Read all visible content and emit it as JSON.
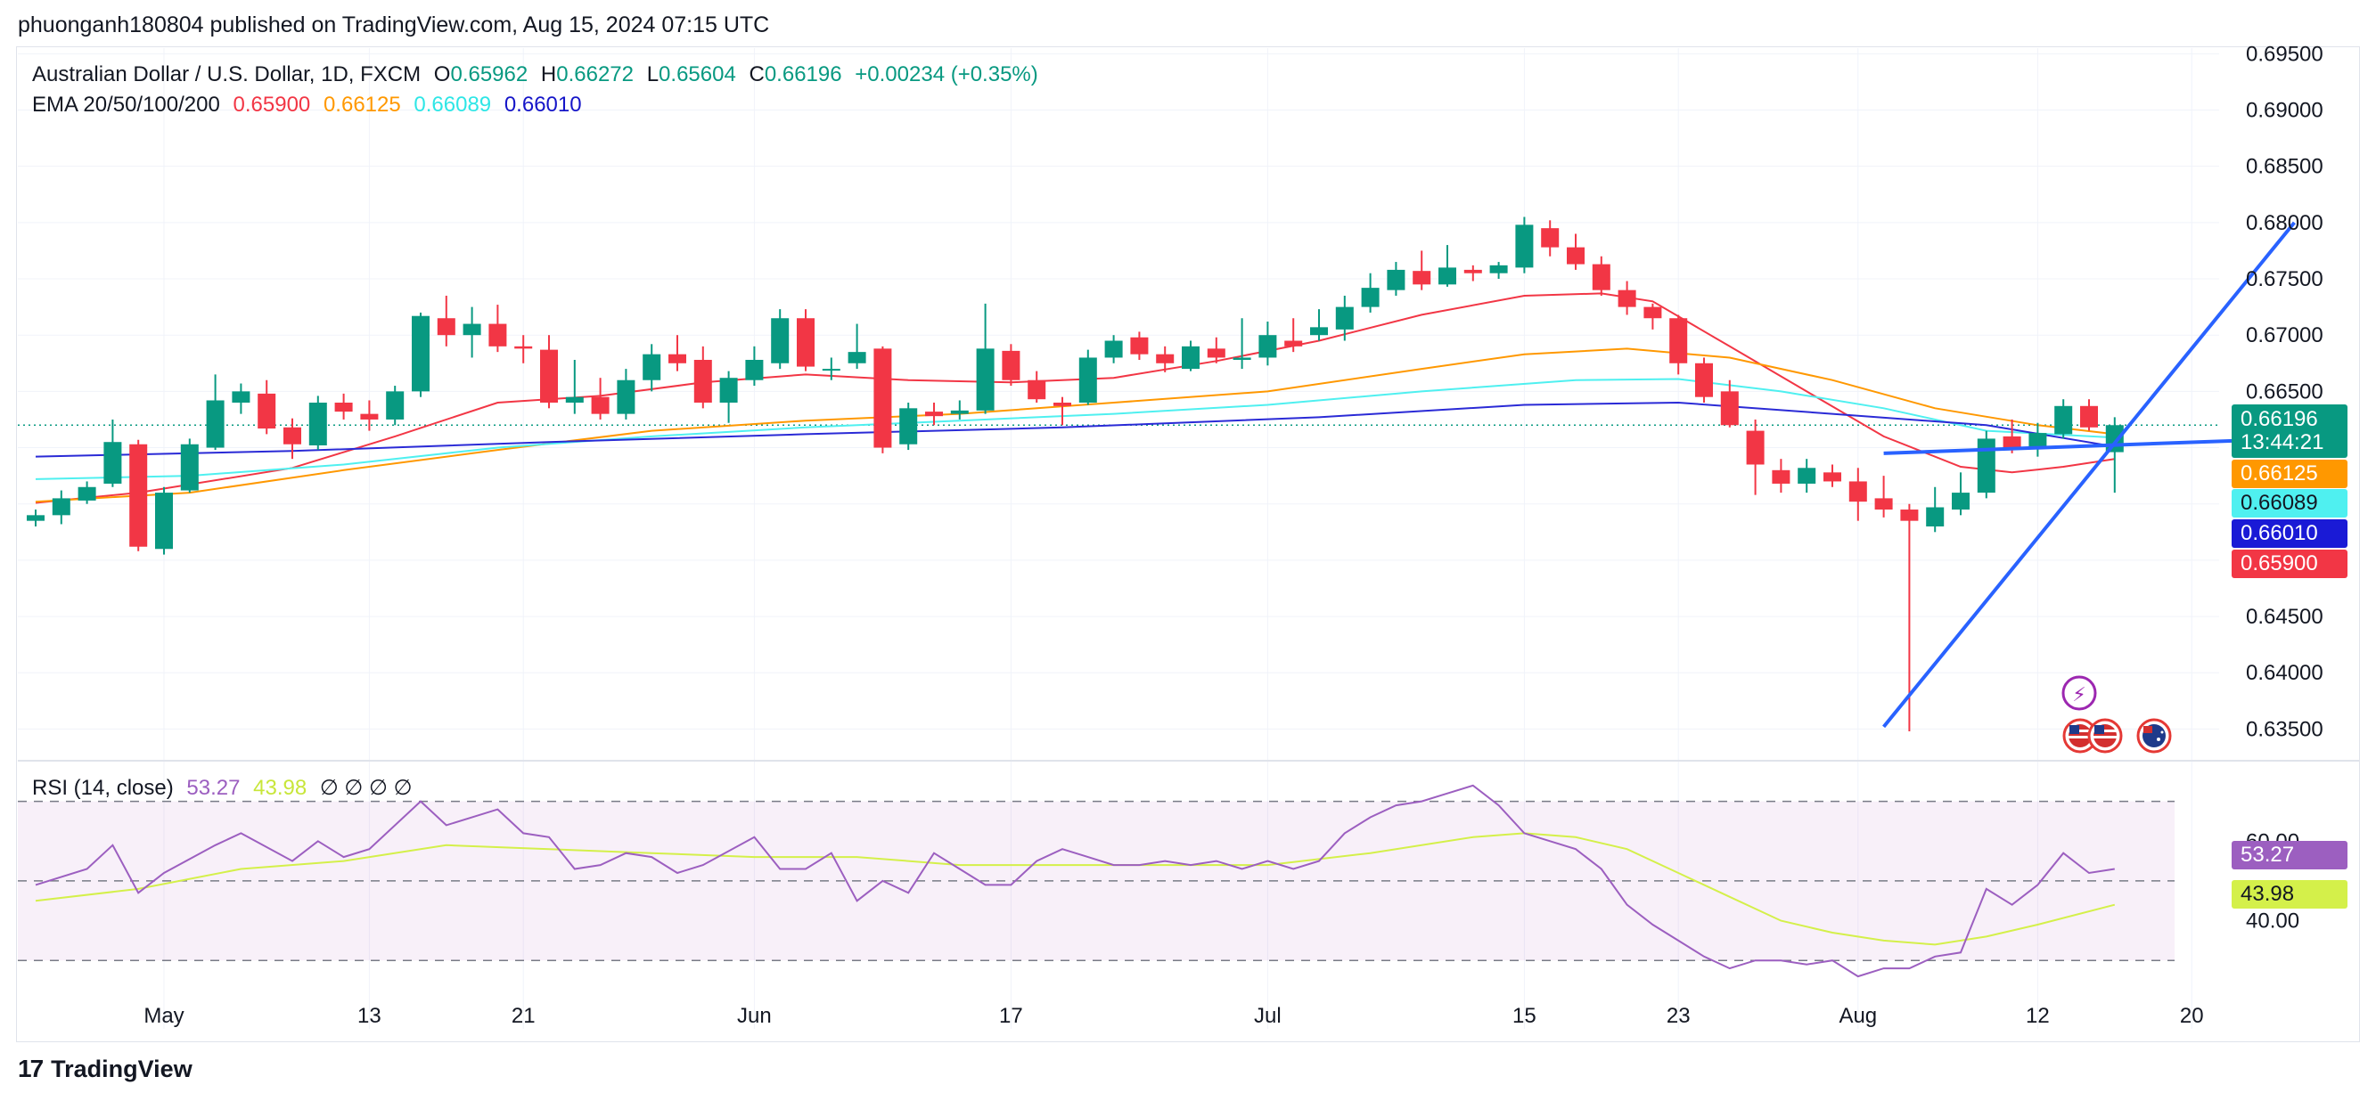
{
  "publisher": "phuonganh180804 published on TradingView.com, Aug 15, 2024 07:15 UTC",
  "legend": {
    "symbol": "Australian Dollar / U.S. Dollar, 1D, FXCM",
    "o_label": "O",
    "o_value": "0.65962",
    "h_label": "H",
    "h_value": "0.66272",
    "l_label": "L",
    "l_value": "0.65604",
    "c_label": "C",
    "c_value": "0.66196",
    "change": "+0.00234 (+0.35%)",
    "ema_label": "EMA 20/50/100/200",
    "ema20": "0.65900",
    "ema50": "0.66125",
    "ema100": "0.66089",
    "ema200": "0.66010"
  },
  "rsi_legend": {
    "label": "RSI (14, close)",
    "rsi": "53.27",
    "ma": "43.98",
    "na": "∅ ∅ ∅ ∅"
  },
  "price_tags": {
    "last_price": "0.66196",
    "countdown": "13:44:21",
    "ema50": "0.66125",
    "ema100": "0.66089",
    "ema200": "0.66010",
    "ema20": "0.65900"
  },
  "rsi_tags": {
    "rsi": "53.27",
    "ma": "43.98"
  },
  "footer": {
    "logo": "17",
    "brand": "TradingView"
  },
  "colors": {
    "up": "#089981",
    "down": "#f23645",
    "ema20": "#f23645",
    "ema50": "#ff9800",
    "ema100": "#4ff0f0",
    "ema200": "#2a2ad6",
    "rsi": "#9c5fc0",
    "rsi_ma": "#d4f04a",
    "trend": "#2962ff"
  },
  "chart_data": {
    "type": "candlestick",
    "title": "Australian Dollar / U.S. Dollar, 1D, FXCM",
    "price_axis": {
      "ylim": [
        0.6325,
        0.6955
      ],
      "ticks": [
        "0.63500",
        "0.64000",
        "0.64500",
        "0.65000",
        "0.65500",
        "0.66000",
        "0.66500",
        "0.67000",
        "0.67500",
        "0.68000",
        "0.68500",
        "0.69000",
        "0.69500"
      ]
    },
    "x_axis_labels": [
      {
        "label": "May",
        "bar": 5
      },
      {
        "label": "13",
        "bar": 13
      },
      {
        "label": "21",
        "bar": 19
      },
      {
        "label": "Jun",
        "bar": 28
      },
      {
        "label": "17",
        "bar": 38
      },
      {
        "label": "Jul",
        "bar": 48
      },
      {
        "label": "15",
        "bar": 58
      },
      {
        "label": "23",
        "bar": 64
      },
      {
        "label": "Aug",
        "bar": 71
      },
      {
        "label": "12",
        "bar": 78
      },
      {
        "label": "20",
        "bar": 84
      }
    ],
    "bar_count": 88,
    "candles": [
      [
        0.6535,
        0.654,
        0.653,
        0.6545
      ],
      [
        0.654,
        0.6555,
        0.6532,
        0.6562
      ],
      [
        0.6553,
        0.6565,
        0.655,
        0.657
      ],
      [
        0.6568,
        0.6605,
        0.6565,
        0.6625
      ],
      [
        0.6603,
        0.6512,
        0.6508,
        0.6607
      ],
      [
        0.651,
        0.656,
        0.6505,
        0.6565
      ],
      [
        0.6562,
        0.6603,
        0.656,
        0.6608
      ],
      [
        0.66,
        0.6642,
        0.6598,
        0.6665
      ],
      [
        0.664,
        0.665,
        0.663,
        0.6657
      ],
      [
        0.6648,
        0.6617,
        0.6612,
        0.666
      ],
      [
        0.6618,
        0.6603,
        0.659,
        0.6626
      ],
      [
        0.6602,
        0.664,
        0.6598,
        0.6646
      ],
      [
        0.664,
        0.6632,
        0.6625,
        0.6648
      ],
      [
        0.663,
        0.6625,
        0.6615,
        0.6642
      ],
      [
        0.6625,
        0.665,
        0.662,
        0.6655
      ],
      [
        0.665,
        0.6717,
        0.6645,
        0.672
      ],
      [
        0.6715,
        0.67,
        0.669,
        0.6735
      ],
      [
        0.67,
        0.671,
        0.668,
        0.6725
      ],
      [
        0.671,
        0.669,
        0.6685,
        0.6727
      ],
      [
        0.669,
        0.6688,
        0.6675,
        0.67
      ],
      [
        0.6687,
        0.664,
        0.6635,
        0.67
      ],
      [
        0.664,
        0.6645,
        0.663,
        0.6678
      ],
      [
        0.6645,
        0.663,
        0.6625,
        0.6662
      ],
      [
        0.663,
        0.666,
        0.6625,
        0.667
      ],
      [
        0.666,
        0.6683,
        0.665,
        0.6692
      ],
      [
        0.6683,
        0.6675,
        0.6668,
        0.67
      ],
      [
        0.6678,
        0.664,
        0.6635,
        0.669
      ],
      [
        0.664,
        0.6662,
        0.6622,
        0.6668
      ],
      [
        0.666,
        0.6678,
        0.6655,
        0.669
      ],
      [
        0.6675,
        0.6715,
        0.667,
        0.6723
      ],
      [
        0.6715,
        0.6672,
        0.6668,
        0.6723
      ],
      [
        0.667,
        0.667,
        0.666,
        0.668
      ],
      [
        0.6675,
        0.6685,
        0.667,
        0.671
      ],
      [
        0.6688,
        0.66,
        0.6595,
        0.669
      ],
      [
        0.6603,
        0.6635,
        0.6598,
        0.664
      ],
      [
        0.6632,
        0.6628,
        0.662,
        0.664
      ],
      [
        0.663,
        0.6633,
        0.6625,
        0.6642
      ],
      [
        0.6633,
        0.6688,
        0.663,
        0.6728
      ],
      [
        0.6686,
        0.666,
        0.6655,
        0.6692
      ],
      [
        0.666,
        0.6643,
        0.664,
        0.6668
      ],
      [
        0.664,
        0.6637,
        0.662,
        0.6645
      ],
      [
        0.664,
        0.668,
        0.6638,
        0.6687
      ],
      [
        0.668,
        0.6695,
        0.6675,
        0.67
      ],
      [
        0.6698,
        0.6683,
        0.6678,
        0.6703
      ],
      [
        0.6683,
        0.6675,
        0.6667,
        0.669
      ],
      [
        0.667,
        0.669,
        0.6668,
        0.6695
      ],
      [
        0.6688,
        0.668,
        0.6675,
        0.6698
      ],
      [
        0.6678,
        0.668,
        0.667,
        0.6715
      ],
      [
        0.668,
        0.67,
        0.6673,
        0.6712
      ],
      [
        0.6695,
        0.669,
        0.6685,
        0.6715
      ],
      [
        0.67,
        0.6707,
        0.6695,
        0.6723
      ],
      [
        0.6705,
        0.6725,
        0.6695,
        0.6735
      ],
      [
        0.6725,
        0.6742,
        0.672,
        0.6755
      ],
      [
        0.674,
        0.6758,
        0.6735,
        0.6765
      ],
      [
        0.6757,
        0.6745,
        0.674,
        0.6775
      ],
      [
        0.6745,
        0.676,
        0.6743,
        0.678
      ],
      [
        0.6758,
        0.6755,
        0.6748,
        0.6762
      ],
      [
        0.6755,
        0.6762,
        0.675,
        0.6765
      ],
      [
        0.676,
        0.6798,
        0.6755,
        0.6805
      ],
      [
        0.6795,
        0.6778,
        0.677,
        0.6802
      ],
      [
        0.6778,
        0.6763,
        0.6758,
        0.679
      ],
      [
        0.6763,
        0.674,
        0.6735,
        0.677
      ],
      [
        0.674,
        0.6725,
        0.6718,
        0.6748
      ],
      [
        0.6725,
        0.6715,
        0.6705,
        0.6728
      ],
      [
        0.6715,
        0.6675,
        0.6665,
        0.6718
      ],
      [
        0.6675,
        0.6645,
        0.664,
        0.668
      ],
      [
        0.665,
        0.662,
        0.6618,
        0.666
      ],
      [
        0.6615,
        0.6585,
        0.6558,
        0.6625
      ],
      [
        0.658,
        0.6568,
        0.656,
        0.659
      ],
      [
        0.6568,
        0.6582,
        0.656,
        0.659
      ],
      [
        0.6578,
        0.657,
        0.6565,
        0.6585
      ],
      [
        0.657,
        0.6552,
        0.6535,
        0.6582
      ],
      [
        0.6555,
        0.6545,
        0.6538,
        0.6575
      ],
      [
        0.6545,
        0.6535,
        0.6348,
        0.655
      ],
      [
        0.653,
        0.6547,
        0.6525,
        0.6565
      ],
      [
        0.6545,
        0.656,
        0.654,
        0.6578
      ],
      [
        0.656,
        0.6608,
        0.6555,
        0.6615
      ],
      [
        0.661,
        0.66,
        0.6595,
        0.6625
      ],
      [
        0.66,
        0.6613,
        0.6592,
        0.6622
      ],
      [
        0.6612,
        0.6637,
        0.6608,
        0.6643
      ],
      [
        0.6637,
        0.6618,
        0.6615,
        0.6643
      ],
      [
        0.6596,
        0.662,
        0.656,
        0.6627
      ]
    ],
    "ema": [
      {
        "name": "EMA 20",
        "last": 0.659,
        "values": [
          [
            0,
            0.6551
          ],
          [
            4,
            0.656
          ],
          [
            10,
            0.6582
          ],
          [
            14,
            0.661
          ],
          [
            18,
            0.664
          ],
          [
            22,
            0.6646
          ],
          [
            26,
            0.6658
          ],
          [
            30,
            0.6665
          ],
          [
            34,
            0.666
          ],
          [
            38,
            0.6658
          ],
          [
            42,
            0.6662
          ],
          [
            46,
            0.6677
          ],
          [
            50,
            0.6695
          ],
          [
            54,
            0.6718
          ],
          [
            58,
            0.6735
          ],
          [
            61,
            0.6737
          ],
          [
            63,
            0.673
          ],
          [
            66,
            0.669
          ],
          [
            69,
            0.665
          ],
          [
            72,
            0.661
          ],
          [
            75,
            0.6583
          ],
          [
            77,
            0.6578
          ],
          [
            79,
            0.6583
          ],
          [
            81,
            0.659
          ]
        ]
      },
      {
        "name": "EMA 50",
        "last": 0.66125,
        "values": [
          [
            0,
            0.6552
          ],
          [
            6,
            0.656
          ],
          [
            12,
            0.658
          ],
          [
            18,
            0.6598
          ],
          [
            24,
            0.6615
          ],
          [
            30,
            0.6624
          ],
          [
            36,
            0.663
          ],
          [
            42,
            0.664
          ],
          [
            48,
            0.665
          ],
          [
            54,
            0.667
          ],
          [
            58,
            0.6683
          ],
          [
            62,
            0.6688
          ],
          [
            66,
            0.668
          ],
          [
            70,
            0.666
          ],
          [
            74,
            0.6635
          ],
          [
            78,
            0.662
          ],
          [
            81,
            0.6612
          ]
        ]
      },
      {
        "name": "EMA 100",
        "last": 0.66089,
        "values": [
          [
            0,
            0.6572
          ],
          [
            6,
            0.6575
          ],
          [
            12,
            0.6585
          ],
          [
            18,
            0.66
          ],
          [
            24,
            0.661
          ],
          [
            30,
            0.6618
          ],
          [
            36,
            0.6624
          ],
          [
            42,
            0.663
          ],
          [
            48,
            0.6638
          ],
          [
            54,
            0.665
          ],
          [
            60,
            0.666
          ],
          [
            64,
            0.6661
          ],
          [
            68,
            0.665
          ],
          [
            72,
            0.6635
          ],
          [
            76,
            0.6615
          ],
          [
            81,
            0.6609
          ]
        ]
      },
      {
        "name": "EMA 200",
        "last": 0.6601,
        "values": [
          [
            0,
            0.6592
          ],
          [
            10,
            0.6597
          ],
          [
            20,
            0.6605
          ],
          [
            30,
            0.6612
          ],
          [
            40,
            0.6618
          ],
          [
            50,
            0.6627
          ],
          [
            58,
            0.6638
          ],
          [
            64,
            0.664
          ],
          [
            70,
            0.663
          ],
          [
            76,
            0.662
          ],
          [
            81,
            0.6601
          ]
        ]
      }
    ],
    "trend_lines": [
      {
        "from": [
          72,
          0.6352
        ],
        "to": [
          88,
          0.68
        ]
      },
      {
        "from": [
          72,
          0.6595
        ],
        "to": [
          88,
          0.6608
        ]
      }
    ],
    "rsi": {
      "ylim": [
        24,
        80
      ],
      "ticks": [
        "60.00",
        "40.00"
      ],
      "bands": [
        70,
        50,
        30
      ],
      "values": [
        [
          0,
          49
        ],
        [
          2,
          53
        ],
        [
          3,
          59
        ],
        [
          4,
          47
        ],
        [
          5,
          52
        ],
        [
          7,
          59
        ],
        [
          8,
          62
        ],
        [
          10,
          55
        ],
        [
          11,
          60
        ],
        [
          12,
          56
        ],
        [
          13,
          58
        ],
        [
          15,
          70
        ],
        [
          16,
          64
        ],
        [
          18,
          68
        ],
        [
          19,
          62
        ],
        [
          20,
          61
        ],
        [
          21,
          53
        ],
        [
          22,
          54
        ],
        [
          23,
          57
        ],
        [
          24,
          56
        ],
        [
          25,
          52
        ],
        [
          26,
          54
        ],
        [
          28,
          61
        ],
        [
          29,
          53
        ],
        [
          30,
          53
        ],
        [
          31,
          57
        ],
        [
          32,
          45
        ],
        [
          33,
          50
        ],
        [
          34,
          47
        ],
        [
          35,
          57
        ],
        [
          36,
          53
        ],
        [
          37,
          49
        ],
        [
          38,
          49
        ],
        [
          39,
          55
        ],
        [
          40,
          58
        ],
        [
          41,
          56
        ],
        [
          42,
          54
        ],
        [
          43,
          54
        ],
        [
          44,
          55
        ],
        [
          45,
          54
        ],
        [
          46,
          55
        ],
        [
          47,
          53
        ],
        [
          48,
          55
        ],
        [
          49,
          53
        ],
        [
          50,
          55
        ],
        [
          51,
          62
        ],
        [
          52,
          66
        ],
        [
          53,
          69
        ],
        [
          54,
          70
        ],
        [
          55,
          72
        ],
        [
          56,
          74
        ],
        [
          57,
          69
        ],
        [
          58,
          62
        ],
        [
          60,
          58
        ],
        [
          61,
          53
        ],
        [
          62,
          44
        ],
        [
          63,
          39
        ],
        [
          64,
          35
        ],
        [
          65,
          31
        ],
        [
          66,
          28
        ],
        [
          67,
          30
        ],
        [
          68,
          30
        ],
        [
          69,
          29
        ],
        [
          70,
          30
        ],
        [
          71,
          26
        ],
        [
          72,
          28
        ],
        [
          73,
          28
        ],
        [
          74,
          31
        ],
        [
          75,
          32
        ],
        [
          76,
          48
        ],
        [
          77,
          44
        ],
        [
          78,
          49
        ],
        [
          79,
          57
        ],
        [
          80,
          52
        ],
        [
          81,
          53
        ]
      ],
      "ma": [
        [
          0,
          45
        ],
        [
          4,
          48
        ],
        [
          8,
          53
        ],
        [
          12,
          55
        ],
        [
          16,
          59
        ],
        [
          20,
          58
        ],
        [
          24,
          57
        ],
        [
          28,
          56
        ],
        [
          32,
          56
        ],
        [
          36,
          54
        ],
        [
          40,
          54
        ],
        [
          44,
          54
        ],
        [
          48,
          54
        ],
        [
          52,
          57
        ],
        [
          56,
          61
        ],
        [
          58,
          62
        ],
        [
          60,
          61
        ],
        [
          62,
          58
        ],
        [
          64,
          52
        ],
        [
          66,
          46
        ],
        [
          68,
          40
        ],
        [
          70,
          37
        ],
        [
          72,
          35
        ],
        [
          74,
          34
        ],
        [
          76,
          36
        ],
        [
          78,
          39
        ],
        [
          81,
          44
        ]
      ]
    }
  }
}
